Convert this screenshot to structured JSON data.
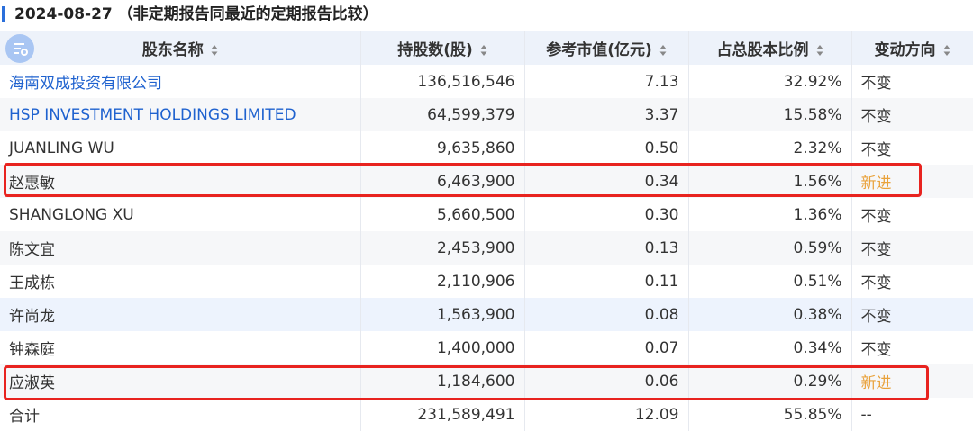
{
  "header": {
    "date": "2024-08-27",
    "note": "（非定期报告同最近的定期报告比较）"
  },
  "table": {
    "columns": [
      "股东名称",
      "持股数(股)",
      "参考市值(亿元)",
      "占总股本比例",
      "变动方向"
    ],
    "rows": [
      [
        "海南双成投资有限公司",
        "136,516,546",
        "7.13",
        "32.92%",
        "不变"
      ],
      [
        "HSP INVESTMENT HOLDINGS LIMITED",
        "64,599,379",
        "3.37",
        "15.58%",
        "不变"
      ],
      [
        "JUANLING WU",
        "9,635,860",
        "0.50",
        "2.32%",
        "不变"
      ],
      [
        "赵惠敏",
        "6,463,900",
        "0.34",
        "1.56%",
        "新进"
      ],
      [
        "SHANGLONG XU",
        "5,660,500",
        "0.30",
        "1.36%",
        "不变"
      ],
      [
        "陈文宜",
        "2,453,900",
        "0.13",
        "0.59%",
        "不变"
      ],
      [
        "王成栋",
        "2,110,906",
        "0.11",
        "0.51%",
        "不变"
      ],
      [
        "许尚龙",
        "1,563,900",
        "0.08",
        "0.38%",
        "不变"
      ],
      [
        "钟森庭",
        "1,400,000",
        "0.07",
        "0.34%",
        "不变"
      ],
      [
        "应淑英",
        "1,184,600",
        "0.06",
        "0.29%",
        "新进"
      ],
      [
        "合计",
        "231,589,491",
        "12.09",
        "55.85%",
        "--"
      ]
    ]
  }
}
